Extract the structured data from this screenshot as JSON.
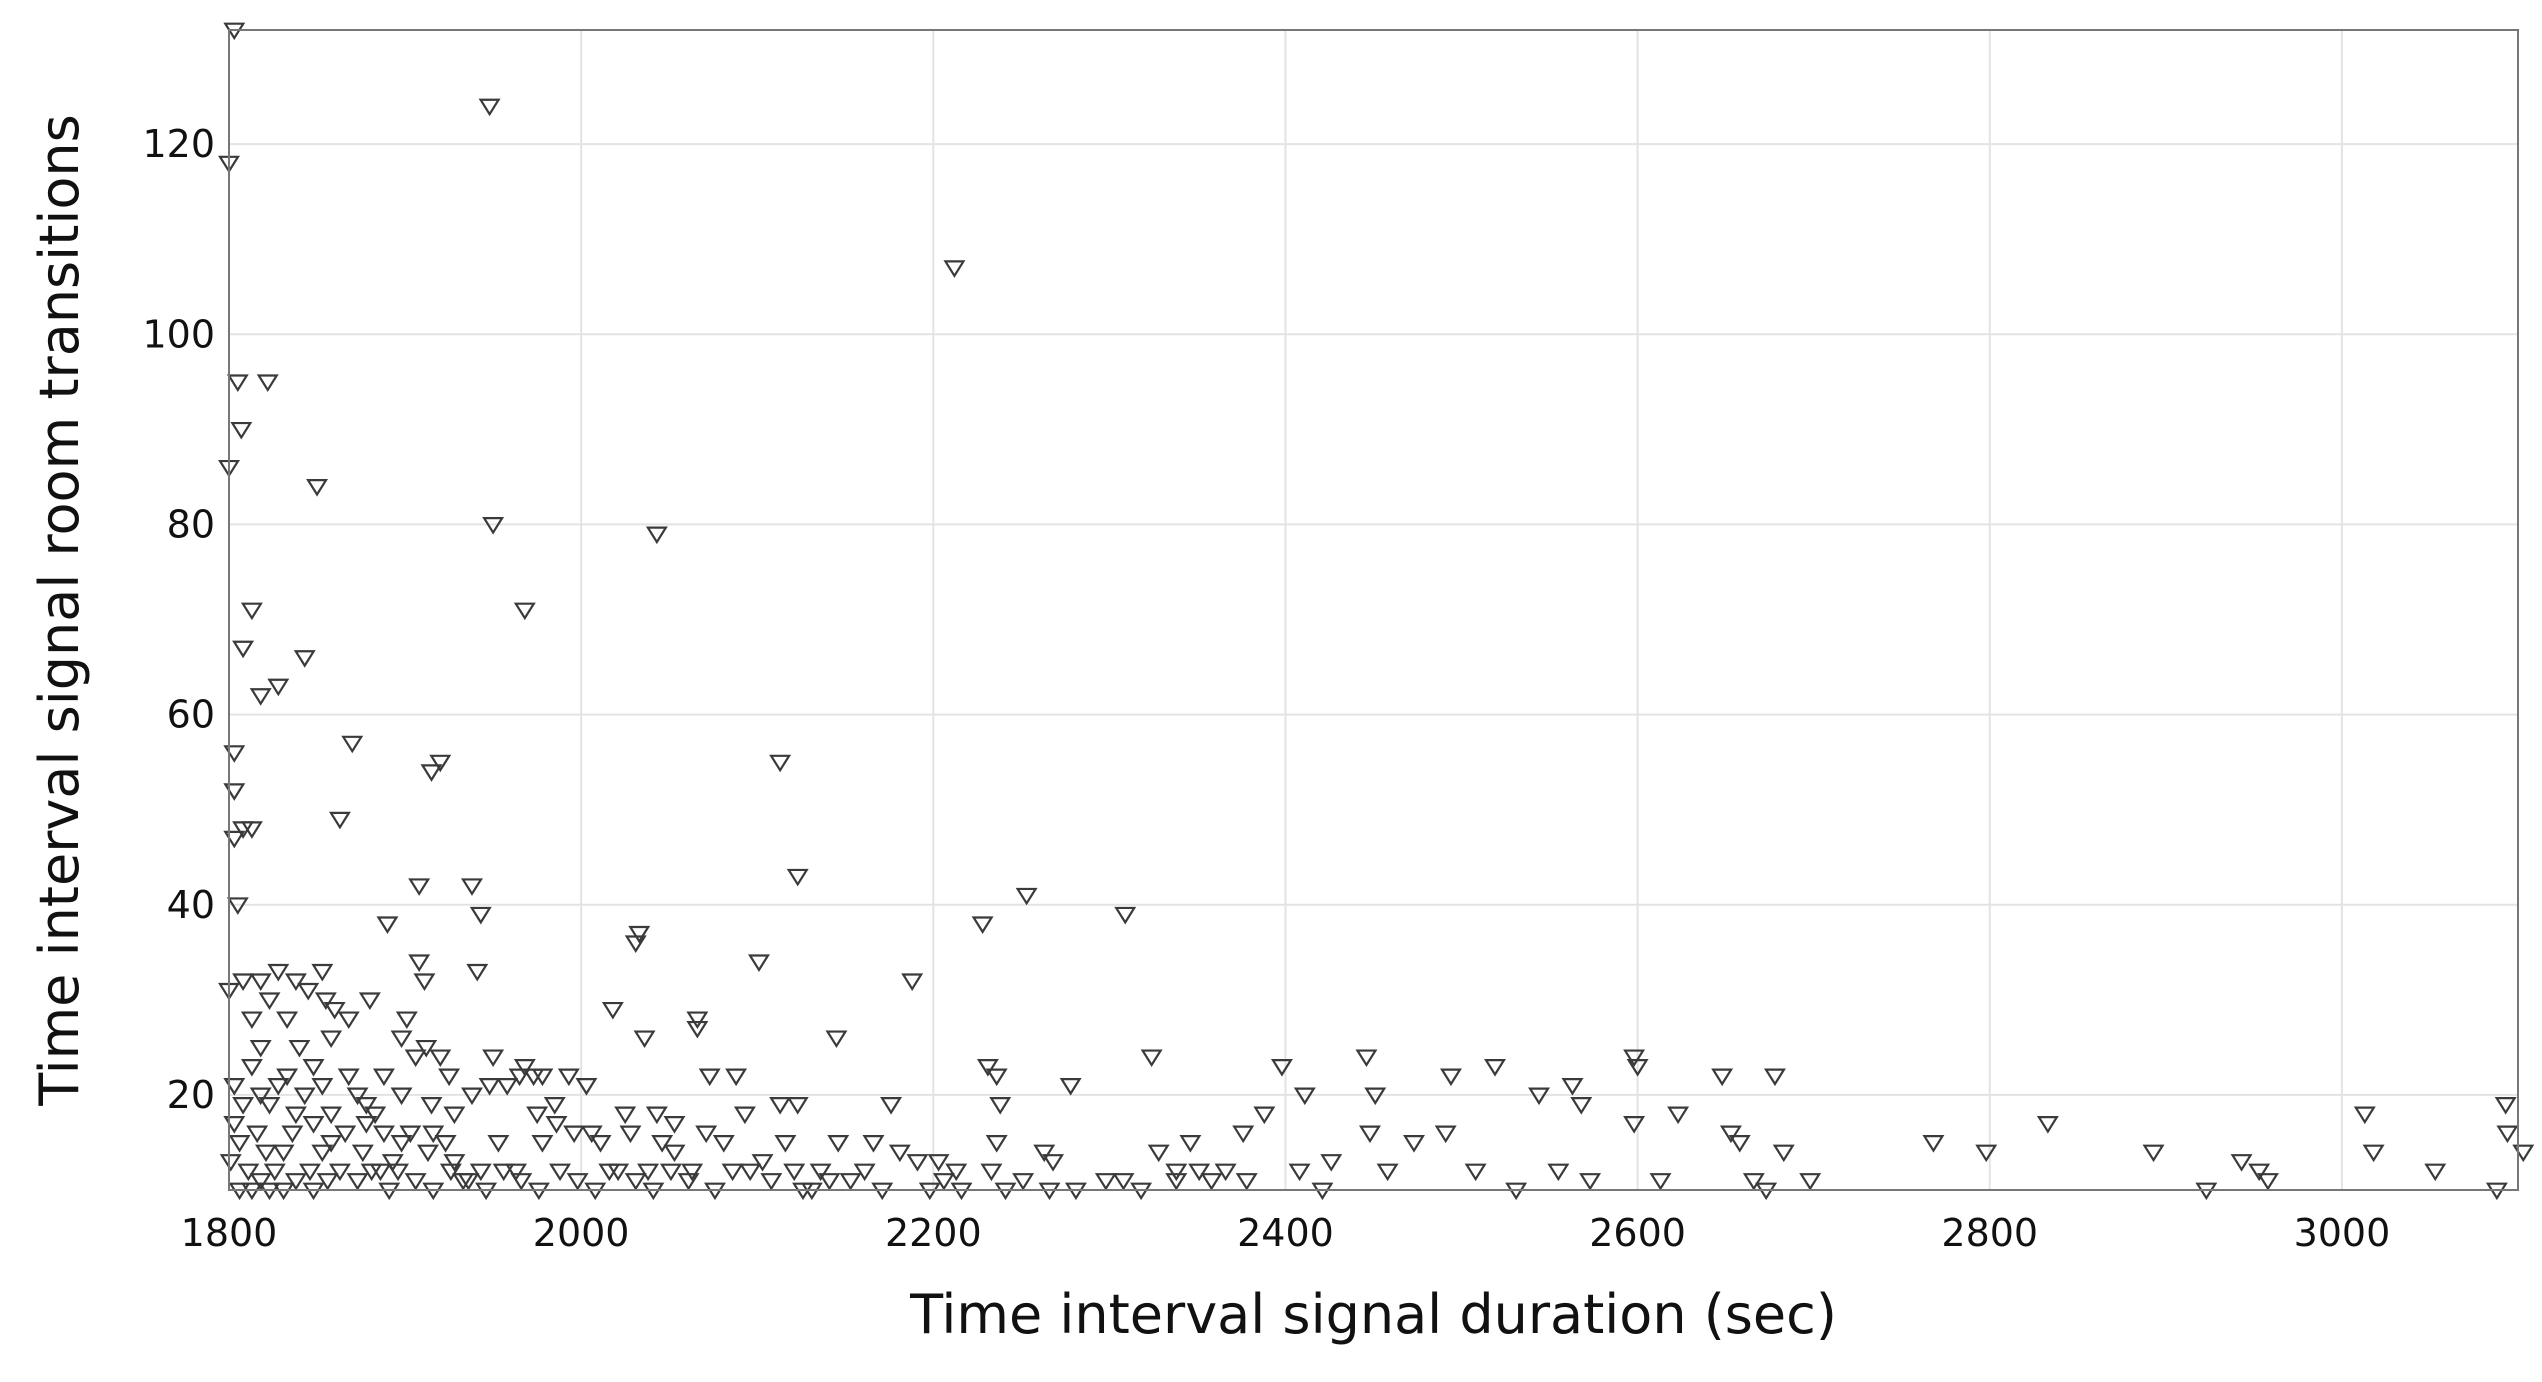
{
  "chart_data": {
    "type": "scatter",
    "title": "",
    "xlabel": "Time interval signal duration (sec)",
    "ylabel": "Time interval signal room transitions",
    "xlim": [
      1800,
      3100
    ],
    "ylim": [
      10,
      132
    ],
    "grid": true,
    "marker": "downward-triangle",
    "marker_color": "#3a3a3a",
    "x_ticks": [
      "1800",
      "2000",
      "2200",
      "2400",
      "2600",
      "2800",
      "3000"
    ],
    "y_ticks": [
      "20",
      "40",
      "60",
      "80",
      "100",
      "120"
    ],
    "points": [
      [
        1803,
        132
      ],
      [
        1800,
        118
      ],
      [
        1948,
        124
      ],
      [
        2212,
        107
      ],
      [
        1805,
        95
      ],
      [
        1822,
        95
      ],
      [
        1807,
        90
      ],
      [
        1800,
        86
      ],
      [
        1850,
        84
      ],
      [
        1950,
        80
      ],
      [
        2043,
        79
      ],
      [
        1813,
        71
      ],
      [
        1968,
        71
      ],
      [
        1808,
        67
      ],
      [
        1843,
        66
      ],
      [
        1828,
        63
      ],
      [
        1818,
        62
      ],
      [
        1870,
        57
      ],
      [
        1803,
        56
      ],
      [
        2113,
        55
      ],
      [
        1920,
        55
      ],
      [
        1915,
        54
      ],
      [
        1803,
        52
      ],
      [
        1863,
        49
      ],
      [
        1808,
        48
      ],
      [
        1813,
        48
      ],
      [
        1803,
        47
      ],
      [
        2123,
        43
      ],
      [
        1908,
        42
      ],
      [
        1938,
        42
      ],
      [
        2253,
        41
      ],
      [
        1805,
        40
      ],
      [
        1943,
        39
      ],
      [
        2309,
        39
      ],
      [
        1890,
        38
      ],
      [
        2228,
        38
      ],
      [
        2033,
        37
      ],
      [
        2031,
        36
      ],
      [
        2101,
        34
      ],
      [
        1908,
        34
      ],
      [
        1853,
        33
      ],
      [
        1941,
        33
      ],
      [
        1828,
        33
      ],
      [
        1808,
        32
      ],
      [
        1818,
        32
      ],
      [
        1838,
        32
      ],
      [
        1911,
        32
      ],
      [
        2188,
        32
      ],
      [
        1800,
        31
      ],
      [
        1823,
        30
      ],
      [
        1845,
        31
      ],
      [
        1855,
        30
      ],
      [
        1880,
        30
      ],
      [
        1868,
        28
      ],
      [
        1860,
        29
      ],
      [
        1901,
        28
      ],
      [
        2018,
        29
      ],
      [
        2066,
        28
      ],
      [
        1813,
        28
      ],
      [
        1833,
        28
      ],
      [
        2036,
        26
      ],
      [
        2145,
        26
      ],
      [
        2066,
        27
      ],
      [
        1898,
        26
      ],
      [
        1818,
        25
      ],
      [
        1840,
        25
      ],
      [
        1858,
        26
      ],
      [
        1912,
        25
      ],
      [
        2324,
        24
      ],
      [
        2398,
        23
      ],
      [
        2446,
        24
      ],
      [
        2519,
        23
      ],
      [
        2231,
        23
      ],
      [
        2598,
        24
      ],
      [
        2600,
        23
      ],
      [
        2236,
        22
      ],
      [
        1906,
        24
      ],
      [
        1920,
        24
      ],
      [
        1950,
        24
      ],
      [
        1968,
        23
      ],
      [
        2648,
        22
      ],
      [
        2678,
        22
      ],
      [
        1813,
        23
      ],
      [
        1833,
        22
      ],
      [
        1848,
        23
      ],
      [
        1868,
        22
      ],
      [
        1888,
        22
      ],
      [
        1925,
        22
      ],
      [
        1958,
        21
      ],
      [
        1965,
        22
      ],
      [
        1993,
        22
      ],
      [
        2073,
        22
      ],
      [
        2088,
        22
      ],
      [
        2278,
        21
      ],
      [
        2494,
        22
      ],
      [
        2544,
        20
      ],
      [
        2563,
        21
      ],
      [
        2411,
        20
      ],
      [
        2451,
        20
      ],
      [
        2003,
        21
      ],
      [
        1803,
        21
      ],
      [
        1818,
        20
      ],
      [
        1828,
        21
      ],
      [
        1843,
        20
      ],
      [
        1853,
        21
      ],
      [
        1873,
        20
      ],
      [
        1898,
        20
      ],
      [
        1915,
        19
      ],
      [
        1938,
        20
      ],
      [
        1948,
        21
      ],
      [
        2568,
        19
      ],
      [
        2238,
        19
      ],
      [
        2113,
        19
      ],
      [
        2123,
        19
      ],
      [
        1808,
        19
      ],
      [
        1823,
        19
      ],
      [
        1838,
        18
      ],
      [
        1858,
        18
      ],
      [
        1878,
        19
      ],
      [
        1883,
        18
      ],
      [
        1928,
        18
      ],
      [
        1975,
        18
      ],
      [
        1985,
        19
      ],
      [
        2025,
        18
      ],
      [
        2043,
        18
      ],
      [
        2093,
        18
      ],
      [
        2176,
        19
      ],
      [
        2388,
        18
      ],
      [
        2448,
        16
      ],
      [
        2473,
        15
      ],
      [
        2491,
        16
      ],
      [
        2623,
        18
      ],
      [
        2653,
        16
      ],
      [
        2658,
        15
      ],
      [
        2833,
        17
      ],
      [
        3013,
        18
      ],
      [
        3093,
        19
      ],
      [
        3094,
        16
      ],
      [
        3103,
        14
      ],
      [
        3018,
        14
      ],
      [
        3053,
        12
      ],
      [
        2768,
        15
      ],
      [
        2798,
        14
      ],
      [
        2893,
        14
      ],
      [
        2943,
        13
      ],
      [
        2953,
        12
      ],
      [
        2958,
        11
      ],
      [
        2923,
        10
      ],
      [
        3088,
        10
      ],
      [
        2598,
        17
      ],
      [
        2408,
        12
      ],
      [
        2426,
        13
      ],
      [
        2458,
        12
      ],
      [
        2508,
        12
      ],
      [
        2555,
        12
      ],
      [
        2573,
        11
      ],
      [
        2613,
        11
      ],
      [
        2666,
        11
      ],
      [
        2673,
        10
      ],
      [
        2683,
        14
      ],
      [
        2698,
        11
      ],
      [
        2531,
        10
      ],
      [
        2421,
        10
      ],
      [
        2378,
        11
      ],
      [
        2358,
        11
      ],
      [
        2346,
        15
      ],
      [
        2376,
        16
      ],
      [
        2328,
        14
      ],
      [
        2308,
        11
      ],
      [
        2298,
        11
      ],
      [
        2263,
        14
      ],
      [
        2268,
        13
      ],
      [
        2241,
        10
      ],
      [
        2281,
        10
      ],
      [
        2203,
        13
      ],
      [
        2213,
        12
      ],
      [
        2206,
        11
      ],
      [
        2191,
        13
      ],
      [
        2181,
        14
      ],
      [
        2166,
        15
      ],
      [
        2153,
        11
      ],
      [
        2146,
        15
      ],
      [
        2136,
        12
      ],
      [
        2126,
        10
      ],
      [
        2121,
        12
      ],
      [
        2116,
        15
      ],
      [
        2103,
        13
      ],
      [
        2096,
        12
      ],
      [
        2081,
        15
      ],
      [
        2071,
        16
      ],
      [
        2063,
        12
      ],
      [
        2053,
        14
      ],
      [
        2046,
        15
      ],
      [
        2038,
        12
      ],
      [
        2028,
        16
      ],
      [
        2016,
        12
      ],
      [
        2006,
        16
      ],
      [
        1996,
        16
      ],
      [
        1986,
        17
      ],
      [
        1978,
        15
      ],
      [
        1963,
        12
      ],
      [
        1953,
        15
      ],
      [
        1943,
        12
      ],
      [
        1933,
        11
      ],
      [
        1923,
        15
      ],
      [
        1913,
        14
      ],
      [
        1903,
        16
      ],
      [
        1893,
        13
      ],
      [
        1886,
        12
      ],
      [
        1876,
        14
      ],
      [
        1866,
        16
      ],
      [
        1853,
        14
      ],
      [
        1846,
        12
      ],
      [
        1836,
        16
      ],
      [
        1831,
        14
      ],
      [
        1826,
        12
      ],
      [
        1821,
        14
      ],
      [
        1816,
        16
      ],
      [
        1811,
        12
      ],
      [
        1806,
        15
      ],
      [
        1801,
        13
      ],
      [
        1803,
        17
      ],
      [
        1806,
        10
      ],
      [
        1813,
        10
      ],
      [
        1818,
        11
      ],
      [
        1823,
        10
      ],
      [
        1831,
        10
      ],
      [
        1838,
        11
      ],
      [
        1848,
        10
      ],
      [
        1856,
        11
      ],
      [
        1863,
        12
      ],
      [
        1873,
        11
      ],
      [
        1881,
        12
      ],
      [
        1891,
        10
      ],
      [
        1896,
        12
      ],
      [
        1906,
        11
      ],
      [
        1916,
        10
      ],
      [
        1926,
        12
      ],
      [
        1936,
        11
      ],
      [
        1946,
        10
      ],
      [
        1956,
        12
      ],
      [
        1966,
        11
      ],
      [
        1976,
        10
      ],
      [
        1988,
        12
      ],
      [
        1998,
        11
      ],
      [
        2008,
        10
      ],
      [
        2021,
        12
      ],
      [
        2031,
        11
      ],
      [
        2041,
        10
      ],
      [
        2051,
        12
      ],
      [
        2061,
        11
      ],
      [
        2076,
        10
      ],
      [
        2086,
        12
      ],
      [
        2108,
        11
      ],
      [
        2131,
        10
      ],
      [
        2141,
        11
      ],
      [
        2161,
        12
      ],
      [
        2171,
        10
      ],
      [
        2198,
        10
      ],
      [
        2216,
        10
      ],
      [
        2251,
        11
      ],
      [
        2266,
        10
      ],
      [
        2318,
        10
      ],
      [
        2338,
        11
      ],
      [
        2351,
        12
      ],
      [
        2366,
        12
      ],
      [
        2338,
        12
      ],
      [
        2233,
        12
      ],
      [
        2236,
        15
      ],
      [
        1973,
        22
      ],
      [
        1978,
        22
      ],
      [
        2011,
        15
      ],
      [
        2053,
        17
      ],
      [
        1888,
        16
      ],
      [
        1898,
        15
      ],
      [
        1916,
        16
      ],
      [
        1928,
        13
      ],
      [
        1848,
        17
      ],
      [
        1858,
        15
      ],
      [
        1878,
        17
      ]
    ]
  }
}
